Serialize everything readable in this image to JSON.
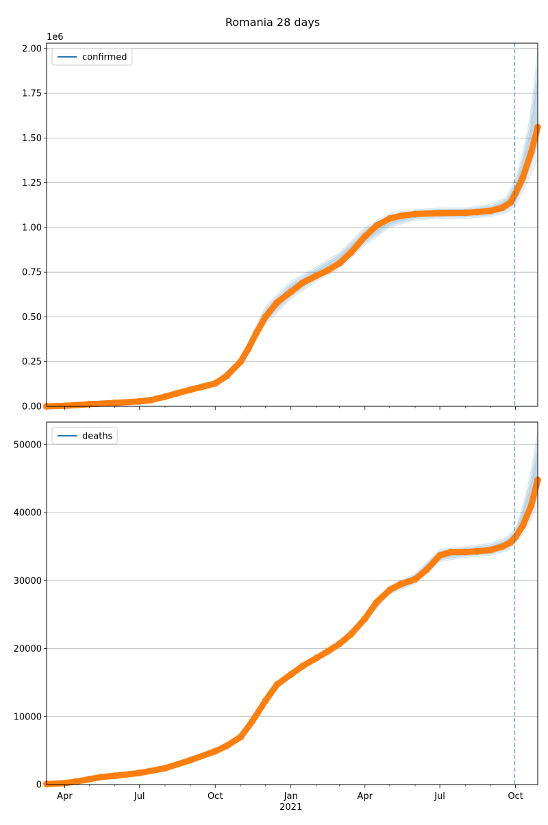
{
  "figure": {
    "title": "Romania 28 days"
  },
  "x_axis": {
    "tick_labels": [
      "Apr",
      "Jul",
      "Oct",
      "Jan",
      "Apr",
      "Jul",
      "Oct"
    ],
    "tick_dates": [
      "2020-04-01",
      "2020-07-01",
      "2020-10-01",
      "2021-01-01",
      "2021-04-01",
      "2021-07-01",
      "2021-10-01"
    ],
    "year_label": "2021",
    "range": [
      "2020-03-10",
      "2021-10-28"
    ]
  },
  "forecast_date": "2021-09-30",
  "colors": {
    "observed": "#ff7f0e",
    "forecast": "#1f77b4",
    "band": "#1f77b4",
    "grid": "#b0b0b0",
    "axis": "#000000"
  },
  "chart_data": [
    {
      "type": "line",
      "legend": "confirmed",
      "legend_position": "top-left",
      "offset_label": "1e6",
      "yticks": [
        0,
        0.25,
        0.5,
        0.75,
        1.0,
        1.25,
        1.5,
        1.75,
        2.0
      ],
      "ytick_labels": [
        "0.00",
        "0.25",
        "0.50",
        "0.75",
        "1.00",
        "1.25",
        "1.50",
        "1.75",
        "2.00"
      ],
      "ylim": [
        0,
        2.03
      ],
      "grid": "horizontal",
      "observed": {
        "x": [
          "2020-03-10",
          "2020-04-01",
          "2020-05-01",
          "2020-06-01",
          "2020-07-01",
          "2020-07-15",
          "2020-08-01",
          "2020-08-15",
          "2020-09-01",
          "2020-09-15",
          "2020-10-01",
          "2020-10-15",
          "2020-11-01",
          "2020-11-10",
          "2020-11-20",
          "2020-12-01",
          "2020-12-15",
          "2021-01-01",
          "2021-01-15",
          "2021-02-01",
          "2021-02-15",
          "2021-03-01",
          "2021-03-15",
          "2021-04-01",
          "2021-04-15",
          "2021-05-01",
          "2021-05-15",
          "2021-06-01",
          "2021-07-01",
          "2021-08-01",
          "2021-08-15",
          "2021-09-01",
          "2021-09-15",
          "2021-09-25",
          "2021-10-01",
          "2021-10-10",
          "2021-10-20",
          "2021-10-28"
        ],
        "y": [
          0.0001,
          0.003,
          0.012,
          0.019,
          0.028,
          0.035,
          0.054,
          0.072,
          0.093,
          0.109,
          0.128,
          0.17,
          0.25,
          0.32,
          0.41,
          0.5,
          0.58,
          0.64,
          0.69,
          0.73,
          0.76,
          0.8,
          0.86,
          0.95,
          1.01,
          1.05,
          1.065,
          1.075,
          1.08,
          1.082,
          1.086,
          1.093,
          1.11,
          1.14,
          1.19,
          1.28,
          1.42,
          1.56
        ]
      },
      "band": {
        "x": [
          "2020-09-01",
          "2020-10-01",
          "2020-11-01",
          "2020-12-01",
          "2021-01-01",
          "2021-02-01",
          "2021-03-01",
          "2021-04-01",
          "2021-05-01",
          "2021-06-01",
          "2021-07-01",
          "2021-08-01",
          "2021-09-01",
          "2021-09-20",
          "2021-10-01",
          "2021-10-10",
          "2021-10-20",
          "2021-10-28"
        ],
        "lower": [
          0.09,
          0.12,
          0.24,
          0.46,
          0.6,
          0.7,
          0.77,
          0.9,
          1.0,
          1.04,
          1.05,
          1.05,
          1.06,
          1.08,
          1.12,
          1.2,
          1.3,
          1.38
        ],
        "upper": [
          0.1,
          0.14,
          0.27,
          0.56,
          0.7,
          0.78,
          0.86,
          1.0,
          1.08,
          1.1,
          1.11,
          1.11,
          1.13,
          1.17,
          1.27,
          1.42,
          1.65,
          2.0
        ]
      }
    },
    {
      "type": "line",
      "legend": "deaths",
      "legend_position": "top-left",
      "yticks": [
        0,
        10000,
        20000,
        30000,
        40000,
        50000
      ],
      "ytick_labels": [
        "0",
        "10000",
        "20000",
        "30000",
        "40000",
        "50000"
      ],
      "ylim": [
        0,
        53300
      ],
      "grid": "horizontal",
      "observed": {
        "x": [
          "2020-03-10",
          "2020-04-01",
          "2020-04-15",
          "2020-05-01",
          "2020-05-15",
          "2020-06-01",
          "2020-07-01",
          "2020-08-01",
          "2020-09-01",
          "2020-10-01",
          "2020-10-15",
          "2020-11-01",
          "2020-11-15",
          "2020-12-01",
          "2020-12-15",
          "2021-01-01",
          "2021-01-15",
          "2021-02-01",
          "2021-02-15",
          "2021-03-01",
          "2021-03-15",
          "2021-04-01",
          "2021-04-15",
          "2021-05-01",
          "2021-05-15",
          "2021-06-01",
          "2021-06-15",
          "2021-07-01",
          "2021-07-15",
          "2021-08-01",
          "2021-08-15",
          "2021-09-01",
          "2021-09-15",
          "2021-09-25",
          "2021-10-01",
          "2021-10-10",
          "2021-10-20",
          "2021-10-28"
        ],
        "y": [
          80,
          200,
          450,
          800,
          1100,
          1300,
          1700,
          2400,
          3600,
          4900,
          5700,
          7000,
          9300,
          12300,
          14700,
          16200,
          17400,
          18600,
          19600,
          20700,
          22100,
          24400,
          26800,
          28600,
          29500,
          30200,
          31600,
          33700,
          34200,
          34200,
          34300,
          34500,
          35000,
          35600,
          36400,
          38100,
          41000,
          44800
        ]
      },
      "band": {
        "x": [
          "2021-01-01",
          "2021-02-01",
          "2021-03-01",
          "2021-04-01",
          "2021-05-01",
          "2021-06-01",
          "2021-07-01",
          "2021-08-01",
          "2021-09-01",
          "2021-09-20",
          "2021-10-01",
          "2021-10-10",
          "2021-10-20",
          "2021-10-28"
        ],
        "lower": [
          15900,
          18300,
          20400,
          24000,
          28000,
          29500,
          32800,
          33400,
          33700,
          34300,
          35400,
          36800,
          39000,
          41000
        ],
        "upper": [
          16600,
          18900,
          21100,
          24900,
          29300,
          31000,
          34600,
          35000,
          35500,
          36400,
          37600,
          41000,
          46000,
          52000
        ]
      }
    }
  ]
}
